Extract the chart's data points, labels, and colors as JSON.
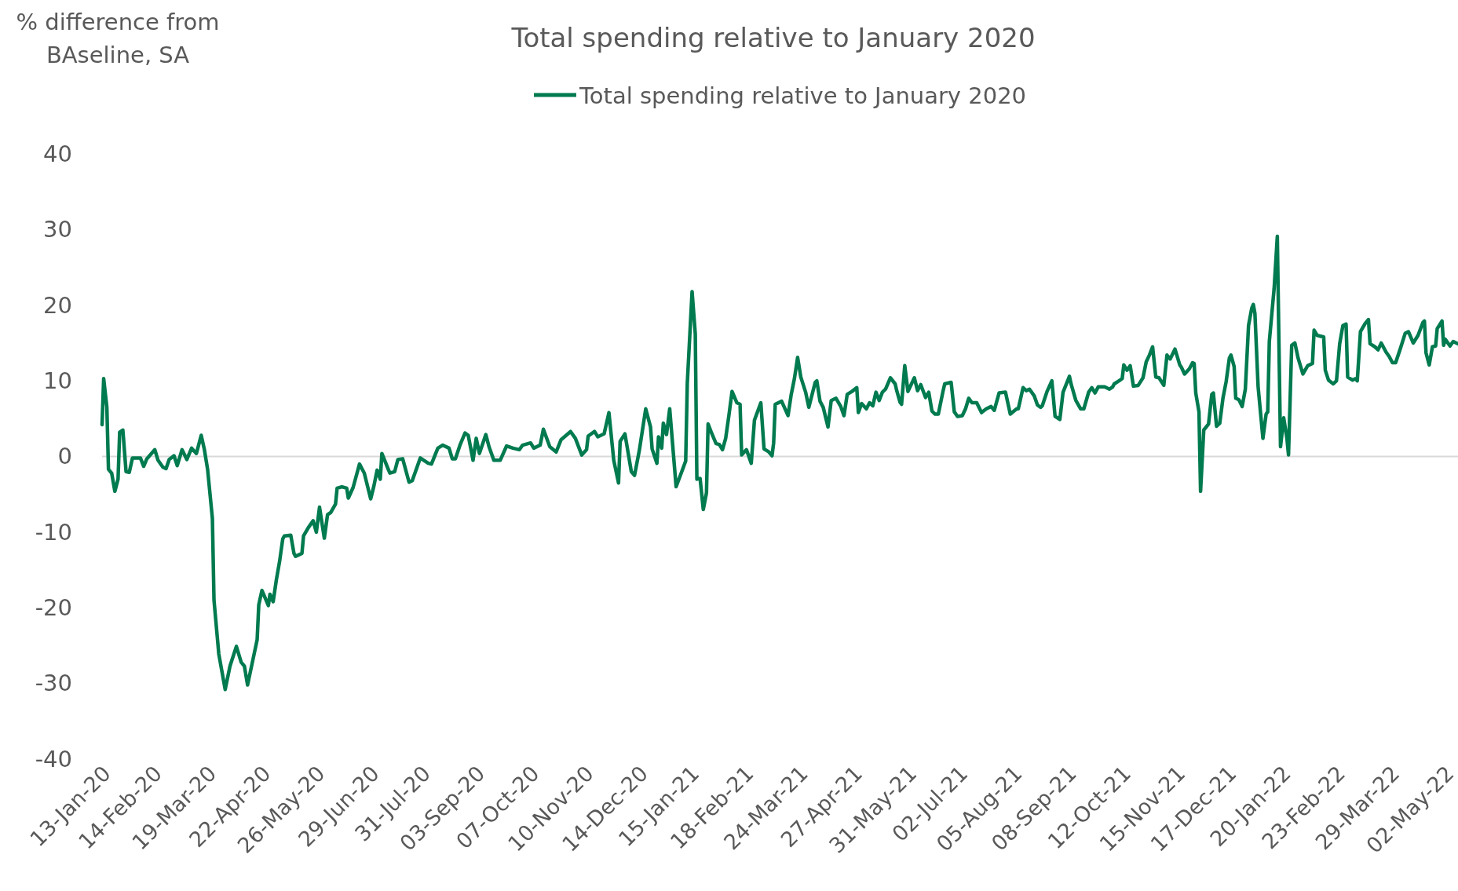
{
  "chart_data": {
    "type": "line",
    "title": "Total spending relative to January 2020",
    "ylabel": "% difference from BAseline, SA",
    "legend": "top",
    "grid": false,
    "ref_lines": [
      {
        "axis": "y",
        "value": 0,
        "color": "#d9d9d9"
      }
    ],
    "marker": "none",
    "line_style": "solid",
    "xlim": [
      "2020-01-13",
      "2022-05-10"
    ],
    "xticks": [
      {
        "value": "2020-01-13",
        "label": "13-Jan-20"
      },
      {
        "value": "2020-02-14",
        "label": "14-Feb-20"
      },
      {
        "value": "2020-03-19",
        "label": "19-Mar-20"
      },
      {
        "value": "2020-04-22",
        "label": "22-Apr-20"
      },
      {
        "value": "2020-05-26",
        "label": "26-May-20"
      },
      {
        "value": "2020-06-29",
        "label": "29-Jun-20"
      },
      {
        "value": "2020-07-31",
        "label": "31-Jul-20"
      },
      {
        "value": "2020-09-03",
        "label": "03-Sep-20"
      },
      {
        "value": "2020-10-07",
        "label": "07-Oct-20"
      },
      {
        "value": "2020-11-10",
        "label": "10-Nov-20"
      },
      {
        "value": "2020-12-14",
        "label": "14-Dec-20"
      },
      {
        "value": "2021-01-15",
        "label": "15-Jan-21"
      },
      {
        "value": "2021-02-18",
        "label": "18-Feb-21"
      },
      {
        "value": "2021-03-24",
        "label": "24-Mar-21"
      },
      {
        "value": "2021-04-27",
        "label": "27-Apr-21"
      },
      {
        "value": "2021-05-31",
        "label": "31-May-21"
      },
      {
        "value": "2021-07-02",
        "label": "02-Jul-21"
      },
      {
        "value": "2021-08-05",
        "label": "05-Aug-21"
      },
      {
        "value": "2021-09-08",
        "label": "08-Sep-21"
      },
      {
        "value": "2021-10-12",
        "label": "12-Oct-21"
      },
      {
        "value": "2021-11-15",
        "label": "15-Nov-21"
      },
      {
        "value": "2021-12-17",
        "label": "17-Dec-21"
      },
      {
        "value": "2022-01-20",
        "label": "20-Jan-22"
      },
      {
        "value": "2022-02-23",
        "label": "23-Feb-22"
      },
      {
        "value": "2022-03-29",
        "label": "29-Mar-22"
      },
      {
        "value": "2022-05-02",
        "label": "02-May-22"
      }
    ],
    "ylim": [
      -40,
      40
    ],
    "yticks": [
      -40,
      -30,
      -20,
      -10,
      0,
      10,
      20,
      30,
      40
    ],
    "series": [
      {
        "name": "Total spending relative to January 2020",
        "color": "#007a4f",
        "x": [
          "2020-01-13",
          "2020-01-14",
          "2020-01-16",
          "2020-01-17",
          "2020-01-19",
          "2020-01-21",
          "2020-01-23",
          "2020-01-24",
          "2020-01-26",
          "2020-01-28",
          "2020-01-30",
          "2020-02-01",
          "2020-02-06",
          "2020-02-08",
          "2020-02-10",
          "2020-02-15",
          "2020-02-17",
          "2020-02-20",
          "2020-02-22",
          "2020-02-24",
          "2020-02-27",
          "2020-02-29",
          "2020-03-03",
          "2020-03-06",
          "2020-03-09",
          "2020-03-12",
          "2020-03-15",
          "2020-03-17",
          "2020-03-19",
          "2020-03-22",
          "2020-03-23",
          "2020-03-26",
          "2020-03-30",
          "2020-04-02",
          "2020-04-06",
          "2020-04-09",
          "2020-04-11",
          "2020-04-13",
          "2020-04-16",
          "2020-04-19",
          "2020-04-20",
          "2020-04-22",
          "2020-04-26",
          "2020-04-27",
          "2020-04-29",
          "2020-05-01",
          "2020-05-03",
          "2020-05-05",
          "2020-05-06",
          "2020-05-10",
          "2020-05-12",
          "2020-05-13",
          "2020-05-17",
          "2020-05-18",
          "2020-05-21",
          "2020-05-24",
          "2020-05-26",
          "2020-05-28",
          "2020-05-31",
          "2020-06-02",
          "2020-06-04",
          "2020-06-07",
          "2020-06-08",
          "2020-06-11",
          "2020-06-14",
          "2020-06-15",
          "2020-06-18",
          "2020-06-22",
          "2020-06-25",
          "2020-06-29",
          "2020-07-01",
          "2020-07-03",
          "2020-07-05",
          "2020-07-06",
          "2020-07-10",
          "2020-07-11",
          "2020-07-14",
          "2020-07-16",
          "2020-07-19",
          "2020-07-23",
          "2020-07-25",
          "2020-07-28",
          "2020-07-30",
          "2020-08-04",
          "2020-08-06",
          "2020-08-10",
          "2020-08-13",
          "2020-08-17",
          "2020-08-19",
          "2020-08-21",
          "2020-08-24",
          "2020-08-27",
          "2020-08-29",
          "2020-09-01",
          "2020-09-03",
          "2020-09-05",
          "2020-09-09",
          "2020-09-11",
          "2020-09-14",
          "2020-09-18",
          "2020-09-22",
          "2020-09-26",
          "2020-09-30",
          "2020-10-02",
          "2020-10-07",
          "2020-10-09",
          "2020-10-13",
          "2020-10-15",
          "2020-10-19",
          "2020-10-23",
          "2020-10-26",
          "2020-11-01",
          "2020-11-04",
          "2020-11-08",
          "2020-11-11",
          "2020-11-12",
          "2020-11-16",
          "2020-11-18",
          "2020-11-22",
          "2020-11-25",
          "2020-11-28",
          "2020-12-01",
          "2020-12-02",
          "2020-12-05",
          "2020-12-09",
          "2020-12-11",
          "2020-12-14",
          "2020-12-18",
          "2020-12-21",
          "2020-12-22",
          "2020-12-25",
          "2020-12-26",
          "2020-12-28",
          "2020-12-29",
          "2020-12-31",
          "2021-01-02",
          "2021-01-06",
          "2021-01-09",
          "2021-01-12",
          "2021-01-13",
          "2021-01-16",
          "2021-01-18",
          "2021-01-19",
          "2021-01-21",
          "2021-01-23",
          "2021-01-25",
          "2021-01-26",
          "2021-01-28",
          "2021-01-31",
          "2021-02-02",
          "2021-02-04",
          "2021-02-06",
          "2021-02-08",
          "2021-02-10",
          "2021-02-13",
          "2021-02-15",
          "2021-02-16",
          "2021-02-19",
          "2021-02-22",
          "2021-02-24",
          "2021-02-28",
          "2021-03-02",
          "2021-03-05",
          "2021-03-07",
          "2021-03-08",
          "2021-03-09",
          "2021-03-13",
          "2021-03-17",
          "2021-03-19",
          "2021-03-21",
          "2021-03-23",
          "2021-03-25",
          "2021-03-28",
          "2021-03-30",
          "2021-04-03",
          "2021-04-04",
          "2021-04-06",
          "2021-04-08",
          "2021-04-11",
          "2021-04-13",
          "2021-04-16",
          "2021-04-19",
          "2021-04-21",
          "2021-04-23",
          "2021-04-26",
          "2021-04-29",
          "2021-04-30",
          "2021-05-02",
          "2021-05-05",
          "2021-05-07",
          "2021-05-09",
          "2021-05-11",
          "2021-05-13",
          "2021-05-15",
          "2021-05-17",
          "2021-05-20",
          "2021-05-23",
          "2021-05-24",
          "2021-05-26",
          "2021-05-27",
          "2021-05-29",
          "2021-05-31",
          "2021-06-04",
          "2021-06-06",
          "2021-06-08",
          "2021-06-11",
          "2021-06-13",
          "2021-06-15",
          "2021-06-17",
          "2021-06-19",
          "2021-06-22",
          "2021-06-23",
          "2021-06-27",
          "2021-06-29",
          "2021-07-01",
          "2021-07-04",
          "2021-07-06",
          "2021-07-08",
          "2021-07-10",
          "2021-07-13",
          "2021-07-16",
          "2021-07-19",
          "2021-07-22",
          "2021-07-24",
          "2021-07-27",
          "2021-07-31",
          "2021-08-03",
          "2021-08-07",
          "2021-08-08",
          "2021-08-11",
          "2021-08-13",
          "2021-08-15",
          "2021-08-18",
          "2021-08-20",
          "2021-08-22",
          "2021-08-23",
          "2021-08-26",
          "2021-08-29",
          "2021-08-31",
          "2021-09-03",
          "2021-09-05",
          "2021-09-09",
          "2021-09-10",
          "2021-09-13",
          "2021-09-16",
          "2021-09-18",
          "2021-09-21",
          "2021-09-23",
          "2021-09-25",
          "2021-09-27",
          "2021-10-01",
          "2021-10-04",
          "2021-10-06",
          "2021-10-07",
          "2021-10-10",
          "2021-10-12",
          "2021-10-13",
          "2021-10-15",
          "2021-10-17",
          "2021-10-19",
          "2021-10-22",
          "2021-10-25",
          "2021-10-27",
          "2021-10-29",
          "2021-10-31",
          "2021-11-02",
          "2021-11-04",
          "2021-11-07",
          "2021-11-09",
          "2021-11-11",
          "2021-11-14",
          "2021-11-17",
          "2021-11-18",
          "2021-11-20",
          "2021-11-23",
          "2021-11-25",
          "2021-11-26",
          "2021-11-27",
          "2021-11-29",
          "2021-11-30",
          "2021-12-02",
          "2021-12-05",
          "2021-12-07",
          "2021-12-08",
          "2021-12-10",
          "2021-12-12",
          "2021-12-14",
          "2021-12-16",
          "2021-12-18",
          "2021-12-19",
          "2021-12-21",
          "2021-12-22",
          "2021-12-24",
          "2021-12-26",
          "2021-12-28",
          "2021-12-30",
          "2022-01-01",
          "2022-01-02",
          "2022-01-03",
          "2022-01-05",
          "2022-01-08",
          "2022-01-10",
          "2022-01-11",
          "2022-01-12",
          "2022-01-15",
          "2022-01-17",
          "2022-01-19",
          "2022-01-21",
          "2022-01-23",
          "2022-01-24",
          "2022-01-26",
          "2022-01-28",
          "2022-01-30",
          "2022-02-02",
          "2022-02-05",
          "2022-02-08",
          "2022-02-09",
          "2022-02-11",
          "2022-02-15",
          "2022-02-16",
          "2022-02-18",
          "2022-02-21",
          "2022-02-23",
          "2022-02-25",
          "2022-02-27",
          "2022-03-01",
          "2022-03-02",
          "2022-03-05",
          "2022-03-07",
          "2022-03-08",
          "2022-03-10",
          "2022-03-13",
          "2022-03-15",
          "2022-03-16",
          "2022-03-19",
          "2022-03-21",
          "2022-03-23",
          "2022-03-26",
          "2022-03-28",
          "2022-03-30",
          "2022-04-01",
          "2022-04-04",
          "2022-04-07",
          "2022-04-09",
          "2022-04-12",
          "2022-04-15",
          "2022-04-18",
          "2022-04-19",
          "2022-04-20",
          "2022-04-22",
          "2022-04-24",
          "2022-04-26",
          "2022-04-27",
          "2022-04-30",
          "2022-05-01",
          "2022-05-02",
          "2022-05-05",
          "2022-05-07",
          "2022-05-10"
        ],
        "values": [
          4.2,
          10.3,
          6.5,
          -1.7,
          -2.2,
          -4.6,
          -3.0,
          3.2,
          3.5,
          -2.0,
          -2.1,
          -0.2,
          -0.2,
          -1.3,
          -0.3,
          0.9,
          -0.5,
          -1.4,
          -1.6,
          -0.4,
          0.1,
          -1.2,
          0.9,
          -0.4,
          1.1,
          0.4,
          2.8,
          0.9,
          -1.7,
          -8.2,
          -19.0,
          -26.1,
          -30.8,
          -27.7,
          -25.1,
          -27.2,
          -27.7,
          -30.2,
          -27.2,
          -24.2,
          -19.6,
          -17.7,
          -19.7,
          -18.2,
          -19.2,
          -16.3,
          -13.9,
          -10.9,
          -10.5,
          -10.4,
          -12.8,
          -13.2,
          -12.8,
          -10.5,
          -9.4,
          -8.5,
          -10.0,
          -6.7,
          -10.8,
          -7.7,
          -7.4,
          -6.3,
          -4.2,
          -4.0,
          -4.2,
          -5.5,
          -4.1,
          -1.0,
          -2.2,
          -5.6,
          -3.9,
          -1.8,
          -3.0,
          0.4,
          -1.7,
          -2.2,
          -2.0,
          -0.4,
          -0.3,
          -3.4,
          -3.2,
          -1.4,
          -0.2,
          -0.9,
          -1.0,
          1.1,
          1.5,
          1.1,
          -0.3,
          -0.3,
          1.6,
          3.1,
          2.8,
          -0.5,
          2.4,
          0.4,
          2.9,
          1.3,
          -0.5,
          -0.5,
          1.4,
          1.1,
          0.9,
          1.5,
          1.8,
          1.1,
          1.5,
          3.6,
          1.3,
          0.6,
          2.2,
          3.3,
          2.4,
          0.2,
          0.9,
          2.7,
          3.3,
          2.6,
          3.0,
          5.8,
          -0.5,
          -3.5,
          2.0,
          3.0,
          -2.0,
          -2.5,
          0.8,
          6.3,
          3.9,
          1.0,
          -0.9,
          2.6,
          1.1,
          4.4,
          2.9,
          6.3,
          -4.0,
          -2.3,
          -0.6,
          9.7,
          21.8,
          16.2,
          -3.0,
          -2.9,
          -7.0,
          -4.8,
          4.3,
          3.2,
          1.7,
          1.6,
          0.9,
          2.4,
          5.4,
          8.6,
          7.1,
          6.9,
          0.2,
          0.9,
          -0.9,
          4.8,
          7.1,
          1.0,
          0.6,
          0.1,
          1.8,
          6.9,
          7.3,
          5.4,
          8.2,
          10.3,
          13.1,
          10.5,
          8.5,
          6.5,
          9.8,
          10.0,
          7.3,
          6.5,
          3.9,
          7.4,
          7.7,
          6.6,
          5.4,
          8.2,
          8.6,
          9.1,
          5.8,
          7.0,
          6.3,
          7.1,
          6.7,
          8.5,
          7.4,
          8.5,
          8.9,
          10.4,
          9.6,
          8.7,
          7.2,
          6.9,
          12.0,
          8.6,
          10.4,
          8.7,
          9.5,
          7.8,
          8.5,
          6.0,
          5.6,
          5.6,
          8.7,
          9.6,
          9.8,
          5.9,
          5.3,
          5.4,
          6.3,
          7.7,
          7.1,
          7.1,
          5.8,
          6.3,
          6.6,
          6.1,
          8.4,
          8.5,
          5.6,
          6.3,
          6.3,
          9.1,
          8.7,
          8.9,
          8.0,
          6.8,
          6.5,
          6.7,
          8.6,
          10.0,
          5.3,
          4.9,
          8.5,
          10.6,
          9.6,
          7.4,
          6.3,
          6.3,
          8.5,
          9.1,
          8.4,
          9.2,
          9.2,
          8.9,
          9.2,
          9.6,
          10.0,
          10.3,
          12.1,
          11.4,
          12.0,
          9.3,
          9.4,
          10.4,
          12.5,
          13.4,
          14.5,
          10.5,
          10.4,
          9.4,
          13.4,
          12.9,
          14.2,
          12.1,
          11.8,
          10.9,
          11.6,
          12.4,
          12.3,
          8.4,
          5.9,
          -4.6,
          3.5,
          4.3,
          8.2,
          8.4,
          4.0,
          4.4,
          7.7,
          9.9,
          13.0,
          13.4,
          11.9,
          7.7,
          7.5,
          6.6,
          8.9,
          17.3,
          19.6,
          20.1,
          18.9,
          9.2,
          2.4,
          5.6,
          5.9,
          15.2,
          22.2,
          29.1,
          1.3,
          5.1,
          2.4,
          0.2,
          14.7,
          15.0,
          13.0,
          10.9,
          12.0,
          12.3,
          16.7,
          16.0,
          15.8,
          11.4,
          10.1,
          9.6,
          10.0,
          14.9,
          17.3,
          17.5,
          10.5,
          10.1,
          10.3,
          10.0,
          16.5,
          17.6,
          18.1,
          14.9,
          14.5,
          14.1,
          15.0,
          13.8,
          13.2,
          12.4,
          12.4,
          14.3,
          16.3,
          16.5,
          15.0,
          16.0,
          17.7,
          17.9,
          13.7,
          12.1,
          14.5,
          14.6,
          16.9,
          17.9,
          14.7,
          15.5,
          14.6,
          15.2,
          14.9
        ]
      }
    ]
  }
}
